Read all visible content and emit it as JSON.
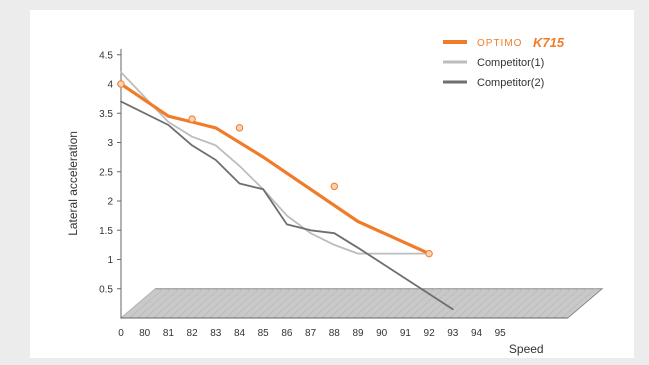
{
  "chart_data": {
    "type": "line",
    "title": "",
    "xlabel": "Speed",
    "ylabel": "Lateral acceleration",
    "x_tick_labels": [
      "0",
      "80",
      "81",
      "82",
      "83",
      "84",
      "85",
      "86",
      "87",
      "88",
      "89",
      "90",
      "91",
      "92",
      "93",
      "94",
      "95"
    ],
    "y_ticks": [
      "0.5",
      "1",
      "1.5",
      "2",
      "2.5",
      "3",
      "3.5",
      "4",
      "4.5"
    ],
    "ylim": [
      0,
      4.5
    ],
    "legend_position": "top-right",
    "legend": {
      "optimo_brand": "OPTIMO",
      "optimo_model": "K715",
      "comp1": "Competitor(1)",
      "comp2": "Competitor(2)"
    },
    "series": [
      {
        "key": "optimo",
        "color": "#f07c2a",
        "x": [
          "0",
          "82",
          "84",
          "88",
          "92"
        ],
        "y": [
          4.0,
          3.4,
          3.25,
          2.25,
          1.1
        ],
        "path": [
          [
            0,
            4.0
          ],
          [
            2,
            3.45
          ],
          [
            3,
            3.35
          ],
          [
            4,
            3.25
          ],
          [
            6,
            2.75
          ],
          [
            10,
            1.65
          ],
          [
            13,
            1.1
          ]
        ]
      },
      {
        "key": "comp1",
        "color": "#bdbdbd",
        "path": [
          [
            0,
            4.2
          ],
          [
            2,
            3.35
          ],
          [
            3,
            3.1
          ],
          [
            4,
            2.95
          ],
          [
            5,
            2.6
          ],
          [
            6,
            2.2
          ],
          [
            7,
            1.75
          ],
          [
            8,
            1.45
          ],
          [
            9,
            1.25
          ],
          [
            10,
            1.1
          ],
          [
            11,
            1.1
          ],
          [
            13,
            1.1
          ]
        ]
      },
      {
        "key": "comp2",
        "color": "#6e6e6e",
        "path": [
          [
            0,
            3.7
          ],
          [
            2,
            3.3
          ],
          [
            3,
            2.95
          ],
          [
            4,
            2.7
          ],
          [
            5,
            2.3
          ],
          [
            6,
            2.2
          ],
          [
            7,
            1.6
          ],
          [
            8,
            1.5
          ],
          [
            9,
            1.45
          ],
          [
            10,
            1.2
          ],
          [
            14,
            0.15
          ]
        ]
      }
    ]
  }
}
